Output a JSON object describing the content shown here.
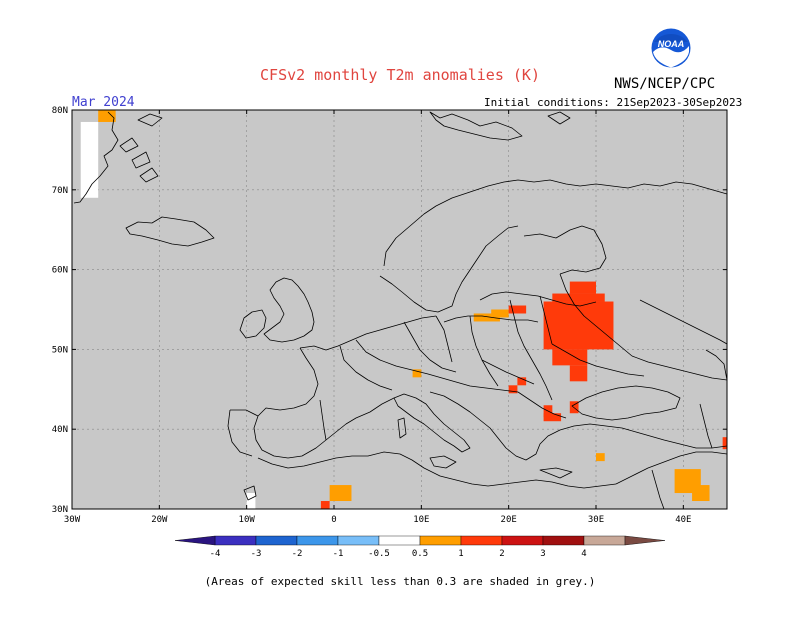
{
  "header": {
    "title": "CFSv2 monthly T2m anomalies (K)",
    "org": "NWS/NCEP/CPC",
    "month": "Mar 2024",
    "initial_conditions": "Initial conditions: 21Sep2023-30Sep2023"
  },
  "logo": {
    "icon": "noaa-logo-icon",
    "text": "NOAA"
  },
  "map": {
    "region": "Europe",
    "lon_range": [
      -30,
      45
    ],
    "lat_range": [
      30,
      80
    ],
    "lat_labels": [
      "80N",
      "70N",
      "60N",
      "50N",
      "40N",
      "30N"
    ],
    "lon_labels": [
      "30W",
      "20W",
      "10W",
      "0",
      "10E",
      "20E",
      "30E",
      "40E"
    ],
    "skill_mask_color": "#c8c8c8",
    "anomaly_patches": [
      {
        "lon": [
          -27,
          -25
        ],
        "lat": [
          78.5,
          80
        ],
        "cls": "0.5-1"
      },
      {
        "lon": [
          -29,
          -27
        ],
        "lat": [
          69,
          78.5
        ],
        "cls": "no-mask"
      },
      {
        "lon": [
          -10,
          -9
        ],
        "lat": [
          30,
          32
        ],
        "cls": "no-mask"
      },
      {
        "lon": [
          -0.5,
          2
        ],
        "lat": [
          31,
          33
        ],
        "cls": "0.5-1"
      },
      {
        "lon": [
          -1.5,
          -0.5
        ],
        "lat": [
          30,
          31
        ],
        "cls": "1-2"
      },
      {
        "lon": [
          9,
          10
        ],
        "lat": [
          46.5,
          47.5
        ],
        "cls": "0.5-1"
      },
      {
        "lon": [
          16,
          19
        ],
        "lat": [
          53.5,
          54.5
        ],
        "cls": "0.5-1"
      },
      {
        "lon": [
          18,
          20
        ],
        "lat": [
          54,
          55
        ],
        "cls": "0.5-1"
      },
      {
        "lon": [
          20,
          22
        ],
        "lat": [
          54.5,
          55.5
        ],
        "cls": "1-2"
      },
      {
        "lon": [
          24,
          32
        ],
        "lat": [
          50,
          56
        ],
        "cls": "1-2"
      },
      {
        "lon": [
          25,
          31
        ],
        "lat": [
          56,
          57
        ],
        "cls": "1-2"
      },
      {
        "lon": [
          27,
          30
        ],
        "lat": [
          57,
          58.5
        ],
        "cls": "1-2"
      },
      {
        "lon": [
          25,
          29
        ],
        "lat": [
          48,
          50
        ],
        "cls": "1-2"
      },
      {
        "lon": [
          27,
          29
        ],
        "lat": [
          46,
          48
        ],
        "cls": "1-2"
      },
      {
        "lon": [
          21,
          22
        ],
        "lat": [
          45.5,
          46.5
        ],
        "cls": "1-2"
      },
      {
        "lon": [
          20,
          21
        ],
        "lat": [
          44.5,
          45.5
        ],
        "cls": "1-2"
      },
      {
        "lon": [
          24,
          25
        ],
        "lat": [
          41.5,
          43
        ],
        "cls": "1-2"
      },
      {
        "lon": [
          27,
          28
        ],
        "lat": [
          42,
          43.5
        ],
        "cls": "1-2"
      },
      {
        "lon": [
          24,
          26
        ],
        "lat": [
          41,
          42
        ],
        "cls": "1-2"
      },
      {
        "lon": [
          30,
          31
        ],
        "lat": [
          36,
          37
        ],
        "cls": "0.5-1"
      },
      {
        "lon": [
          39,
          42
        ],
        "lat": [
          32,
          35
        ],
        "cls": "0.5-1"
      },
      {
        "lon": [
          41,
          43
        ],
        "lat": [
          31,
          33
        ],
        "cls": "0.5-1"
      },
      {
        "lon": [
          44.5,
          45
        ],
        "lat": [
          37.5,
          39
        ],
        "cls": "1-2"
      }
    ]
  },
  "colorbar": {
    "labels": [
      "-4",
      "-3",
      "-2",
      "-1",
      "-0.5",
      "0.5",
      "1",
      "2",
      "3",
      "4"
    ],
    "colors": {
      "lt_-4": "#2a1480",
      "-4_-3": "#3b2fc0",
      "-3_-2": "#1e64d0",
      "-2_-1": "#3c96ea",
      "-1_-0.5": "#78bef8",
      "-0.5_0.5": "#ffffff",
      "0.5_1": "#ff9e00",
      "1_2": "#ff3a0a",
      "2_3": "#cc1212",
      "3_4": "#a01010",
      "4_5": "#c8a898",
      "gt_5": "#7a4a42"
    }
  },
  "footnote": "(Areas of expected skill less than 0.3 are shaded in grey.)"
}
